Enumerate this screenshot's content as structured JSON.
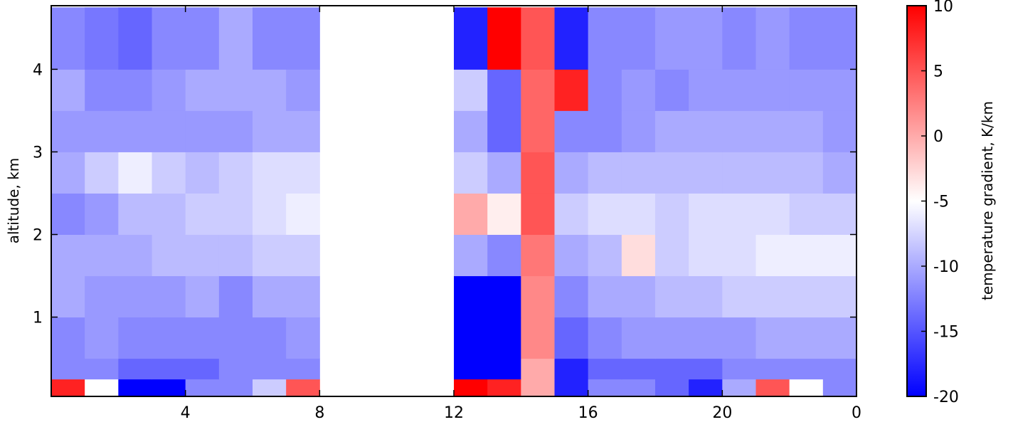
{
  "chart_data": {
    "type": "heatmap",
    "xlabel": null,
    "ylabel": "altitude, km",
    "colorbar_label": "temperature gradient, K/km",
    "xlim": [
      0,
      24
    ],
    "ylim": [
      0.04,
      4.77
    ],
    "xticks": [
      4,
      8,
      12,
      16,
      20,
      {
        "value": 24,
        "label": "0"
      }
    ],
    "yticks": [
      1,
      2,
      3,
      4
    ],
    "zlim": [
      -20,
      10
    ],
    "zticks": [
      -20,
      -15,
      -10,
      -5,
      0,
      5,
      10
    ],
    "colormap": [
      "#0000ff",
      "#ffffff",
      "#ff0000"
    ],
    "x_edges": [
      0,
      1,
      2,
      3,
      4,
      5,
      6,
      7,
      8,
      9,
      10,
      11,
      12,
      13,
      14,
      15,
      16,
      17,
      18,
      19,
      20,
      21,
      22,
      23,
      24
    ],
    "y_edges": [
      0.05,
      0.25,
      0.5,
      1,
      1.5,
      2,
      2.5,
      3,
      3.5,
      4,
      4.75
    ],
    "z": [
      [
        8,
        -5,
        -20,
        -20,
        -12,
        -12,
        -8,
        5,
        null,
        null,
        null,
        null,
        10,
        8,
        0,
        -18,
        -12,
        -12,
        -14,
        -18,
        -10,
        5,
        -5,
        -12
      ],
      [
        -12,
        -12,
        -14,
        -14,
        -14,
        -12,
        -12,
        -12,
        null,
        null,
        null,
        null,
        -20,
        -20,
        0,
        -18,
        -14,
        -14,
        -14,
        -14,
        -12,
        -12,
        -12,
        -12
      ],
      [
        -12,
        -11,
        -12,
        -12,
        -12,
        -12,
        -12,
        -11,
        null,
        null,
        null,
        null,
        -20,
        -20,
        2,
        -14,
        -12,
        -11,
        -11,
        -11,
        -11,
        -10,
        -10,
        -10
      ],
      [
        -10,
        -11,
        -11,
        -11,
        -10,
        -12,
        -10,
        -10,
        null,
        null,
        null,
        null,
        -20,
        -20,
        2,
        -12,
        -10,
        -10,
        -9,
        -9,
        -8,
        -8,
        -8,
        -8
      ],
      [
        -10,
        -10,
        -10,
        -9,
        -9,
        -9,
        -8,
        -8,
        null,
        null,
        null,
        null,
        -10,
        -12,
        3,
        -10,
        -9,
        -3,
        -8,
        -7,
        -7,
        -6,
        -6,
        -6
      ],
      [
        -12,
        -11,
        -9,
        -9,
        -8,
        -8,
        -7,
        -6,
        null,
        null,
        null,
        null,
        0,
        -4,
        5,
        -8,
        -7,
        -7,
        -8,
        -7,
        -7,
        -7,
        -8,
        -8
      ],
      [
        -10,
        -8,
        -6,
        -8,
        -9,
        -8,
        -7,
        -7,
        null,
        null,
        null,
        null,
        -8,
        -10,
        5,
        -10,
        -9,
        -9,
        -9,
        -9,
        -9,
        -9,
        -9,
        -10
      ],
      [
        -11,
        -11,
        -11,
        -11,
        -11,
        -11,
        -10,
        -10,
        null,
        null,
        null,
        null,
        -10,
        -14,
        4,
        -12,
        -12,
        -11,
        -10,
        -10,
        -10,
        -10,
        -10,
        -11
      ],
      [
        -10,
        -12,
        -12,
        -11,
        -10,
        -10,
        -10,
        -11,
        null,
        null,
        null,
        null,
        -8,
        -14,
        4,
        8,
        -12,
        -11,
        -12,
        -11,
        -11,
        -11,
        -11,
        -11
      ],
      [
        -12,
        -13,
        -14,
        -12,
        -12,
        -10,
        -12,
        -12,
        null,
        null,
        null,
        null,
        -18,
        10,
        5,
        -18,
        -12,
        -12,
        -11,
        -11,
        -12,
        -11,
        -12,
        -12
      ]
    ]
  }
}
